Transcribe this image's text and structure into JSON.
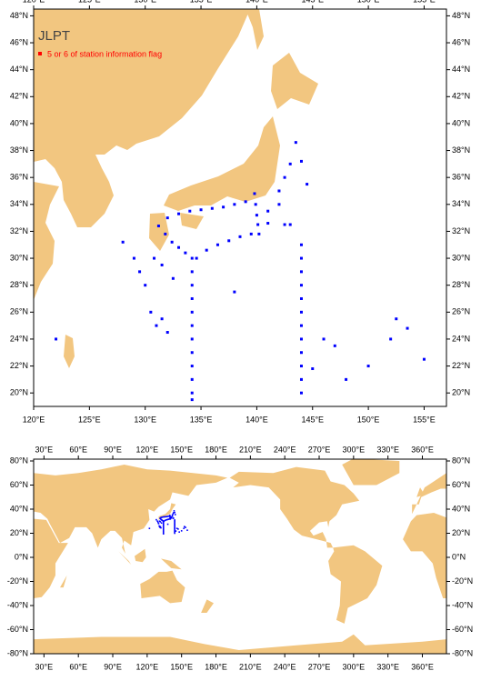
{
  "maps": [
    {
      "title": "JLPT",
      "legend": {
        "label": "5 or 6 of station information flag",
        "color": "#ff0000"
      },
      "xlim": [
        120,
        157
      ],
      "ylim": [
        19,
        48.5
      ],
      "xticks": [
        {
          "value": 120,
          "label": "120°E"
        },
        {
          "value": 125,
          "label": "125°E"
        },
        {
          "value": 130,
          "label": "130°E"
        },
        {
          "value": 135,
          "label": "135°E"
        },
        {
          "value": 140,
          "label": "140°E"
        },
        {
          "value": 145,
          "label": "145°E"
        },
        {
          "value": 150,
          "label": "150°E"
        },
        {
          "value": 155,
          "label": "155°E"
        }
      ],
      "yticks": [
        {
          "value": 20,
          "label": "20°N"
        },
        {
          "value": 22,
          "label": "22°N"
        },
        {
          "value": 24,
          "label": "24°N"
        },
        {
          "value": 26,
          "label": "26°N"
        },
        {
          "value": 28,
          "label": "28°N"
        },
        {
          "value": 30,
          "label": "30°N"
        },
        {
          "value": 32,
          "label": "32°N"
        },
        {
          "value": 34,
          "label": "34°N"
        },
        {
          "value": 36,
          "label": "36°N"
        },
        {
          "value": 38,
          "label": "38°N"
        },
        {
          "value": 40,
          "label": "40°N"
        },
        {
          "value": 42,
          "label": "42°N"
        },
        {
          "value": 44,
          "label": "44°N"
        },
        {
          "value": 46,
          "label": "46°N"
        },
        {
          "value": 48,
          "label": "48°N"
        }
      ]
    },
    {
      "xlim": [
        21,
        381
      ],
      "ylim": [
        -80,
        81.5
      ],
      "xticks": [
        {
          "value": 30,
          "label": "30°E"
        },
        {
          "value": 60,
          "label": "60°E"
        },
        {
          "value": 90,
          "label": "90°E"
        },
        {
          "value": 120,
          "label": "120°E"
        },
        {
          "value": 150,
          "label": "150°E"
        },
        {
          "value": 180,
          "label": "180°E"
        },
        {
          "value": 210,
          "label": "210°E"
        },
        {
          "value": 240,
          "label": "240°E"
        },
        {
          "value": 270,
          "label": "270°E"
        },
        {
          "value": 300,
          "label": "300°E"
        },
        {
          "value": 330,
          "label": "330°E"
        },
        {
          "value": 360,
          "label": "360°E"
        }
      ],
      "yticks": [
        {
          "value": -80,
          "label": "-80°N"
        },
        {
          "value": -60,
          "label": "-60°N"
        },
        {
          "value": -40,
          "label": "-40°N"
        },
        {
          "value": -20,
          "label": "-20°N"
        },
        {
          "value": 0,
          "label": "0°N"
        },
        {
          "value": 20,
          "label": "20°N"
        },
        {
          "value": 40,
          "label": "40°N"
        },
        {
          "value": 60,
          "label": "60°N"
        },
        {
          "value": 80,
          "label": "80°N"
        }
      ]
    }
  ],
  "stations": {
    "color": "#0000ff",
    "lon": [
      131.2,
      131.8,
      132.4,
      133.0,
      133.6,
      134.2,
      134.6,
      134.2,
      134.2,
      134.2,
      134.2,
      134.2,
      134.2,
      134.2,
      134.2,
      134.2,
      134.2,
      134.2,
      144,
      144,
      144,
      144,
      144,
      144,
      144,
      144,
      144,
      144,
      144,
      144,
      135.5,
      136.5,
      137.5,
      138.5,
      139.5,
      132,
      133,
      134,
      135,
      136,
      137,
      138,
      139,
      139.8,
      139.9,
      140,
      140.1,
      140.2,
      141,
      141,
      142,
      142.5,
      143,
      142,
      142.5,
      143,
      143.5,
      144,
      144.5,
      128,
      129,
      129.5,
      130,
      130.5,
      131,
      131.5,
      132,
      130.8,
      131.5,
      132.5,
      122,
      138,
      146,
      147,
      148,
      150,
      152.5,
      153.5,
      155,
      152,
      145
    ],
    "lat": [
      32.4,
      31.8,
      31.2,
      30.8,
      30.4,
      30.0,
      30.0,
      29,
      28,
      27,
      26,
      25,
      24,
      23,
      22,
      21,
      20,
      19.5,
      31,
      30,
      29,
      28,
      27,
      26,
      25,
      24,
      23,
      22,
      21,
      20,
      30.6,
      31,
      31.3,
      31.6,
      31.8,
      33,
      33.3,
      33.5,
      33.6,
      33.7,
      33.8,
      34,
      34.2,
      34.8,
      34,
      33.2,
      32.5,
      31.8,
      32.6,
      33.5,
      34,
      32.5,
      32.5,
      35,
      36,
      37,
      38.6,
      37.2,
      35.5,
      31.2,
      30,
      29,
      28,
      26,
      25,
      25.5,
      24.5,
      30,
      29.5,
      28.5,
      24,
      27.5,
      24,
      23.5,
      21,
      22,
      25.5,
      24.8,
      22.5,
      24,
      21.8
    ]
  }
}
